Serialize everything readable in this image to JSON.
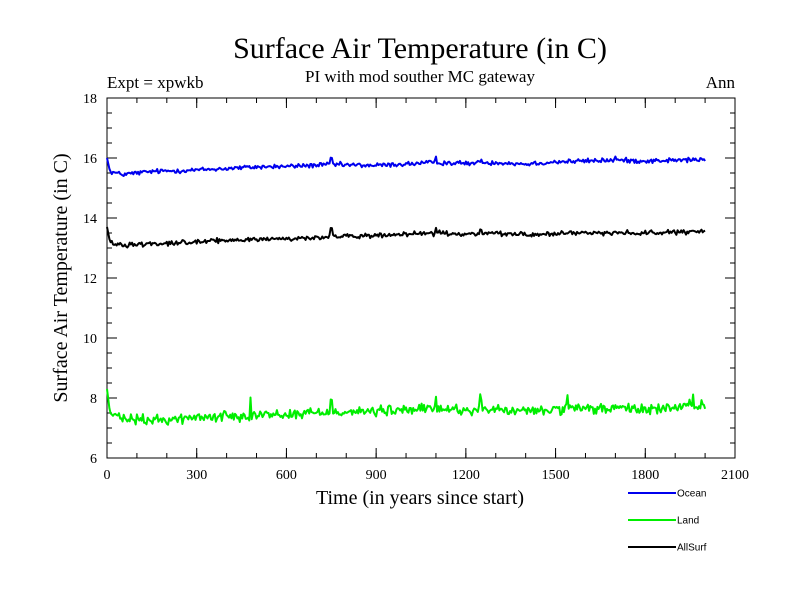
{
  "chart_data": {
    "type": "line",
    "title": "Surface Air Temperature (in C)",
    "subtitle": "PI with mod souther MC gateway",
    "left_annotation": "Expt = xpwkb",
    "right_annotation": "Ann",
    "xlabel": "Time (in years since start)",
    "ylabel": "Surface Air Temperature (in C)",
    "xlim": [
      0,
      2100
    ],
    "ylim": [
      6,
      18
    ],
    "xticks": [
      0,
      300,
      600,
      900,
      1200,
      1500,
      1800,
      2100
    ],
    "yticks": [
      6,
      8,
      10,
      12,
      14,
      16,
      18
    ],
    "x_minor_step": 100,
    "y_minor_step": 0.5,
    "x_step": 4,
    "x_end": 2000,
    "series": [
      {
        "name": "Ocean",
        "color": "#0000ee",
        "anchors": [
          [
            0,
            16.0
          ],
          [
            10,
            15.55
          ],
          [
            50,
            15.45
          ],
          [
            150,
            15.55
          ],
          [
            300,
            15.6
          ],
          [
            500,
            15.7
          ],
          [
            600,
            15.72
          ],
          [
            750,
            15.78
          ],
          [
            900,
            15.75
          ],
          [
            1100,
            15.85
          ],
          [
            1200,
            15.82
          ],
          [
            1300,
            15.85
          ],
          [
            1400,
            15.8
          ],
          [
            1500,
            15.87
          ],
          [
            1700,
            15.93
          ],
          [
            1800,
            15.9
          ],
          [
            2000,
            15.95
          ]
        ],
        "noise": 0.06,
        "spikes": [
          [
            750,
            0.22
          ],
          [
            1100,
            0.2
          ],
          [
            1250,
            0.12
          ],
          [
            1700,
            0.12
          ]
        ]
      },
      {
        "name": "Land",
        "color": "#00ee00",
        "anchors": [
          [
            0,
            8.3
          ],
          [
            10,
            7.5
          ],
          [
            50,
            7.3
          ],
          [
            150,
            7.25
          ],
          [
            300,
            7.35
          ],
          [
            500,
            7.45
          ],
          [
            600,
            7.45
          ],
          [
            750,
            7.55
          ],
          [
            900,
            7.55
          ],
          [
            1100,
            7.65
          ],
          [
            1200,
            7.6
          ],
          [
            1300,
            7.6
          ],
          [
            1400,
            7.55
          ],
          [
            1500,
            7.62
          ],
          [
            1700,
            7.65
          ],
          [
            1800,
            7.62
          ],
          [
            2000,
            7.75
          ]
        ],
        "noise": 0.13,
        "spikes": [
          [
            480,
            0.5
          ],
          [
            750,
            0.35
          ],
          [
            1100,
            0.4
          ],
          [
            1250,
            0.45
          ],
          [
            1540,
            0.35
          ],
          [
            1960,
            0.3
          ]
        ]
      },
      {
        "name": "AllSurf",
        "color": "#000000",
        "anchors": [
          [
            0,
            13.7
          ],
          [
            10,
            13.2
          ],
          [
            50,
            13.1
          ],
          [
            150,
            13.15
          ],
          [
            300,
            13.2
          ],
          [
            500,
            13.3
          ],
          [
            600,
            13.3
          ],
          [
            750,
            13.38
          ],
          [
            900,
            13.4
          ],
          [
            1100,
            13.5
          ],
          [
            1200,
            13.45
          ],
          [
            1300,
            13.5
          ],
          [
            1400,
            13.45
          ],
          [
            1500,
            13.48
          ],
          [
            1700,
            13.52
          ],
          [
            1800,
            13.5
          ],
          [
            2000,
            13.55
          ]
        ],
        "noise": 0.06,
        "spikes": [
          [
            750,
            0.25
          ],
          [
            1100,
            0.25
          ],
          [
            1250,
            0.15
          ]
        ]
      }
    ],
    "legend_position": "bottom-right"
  }
}
